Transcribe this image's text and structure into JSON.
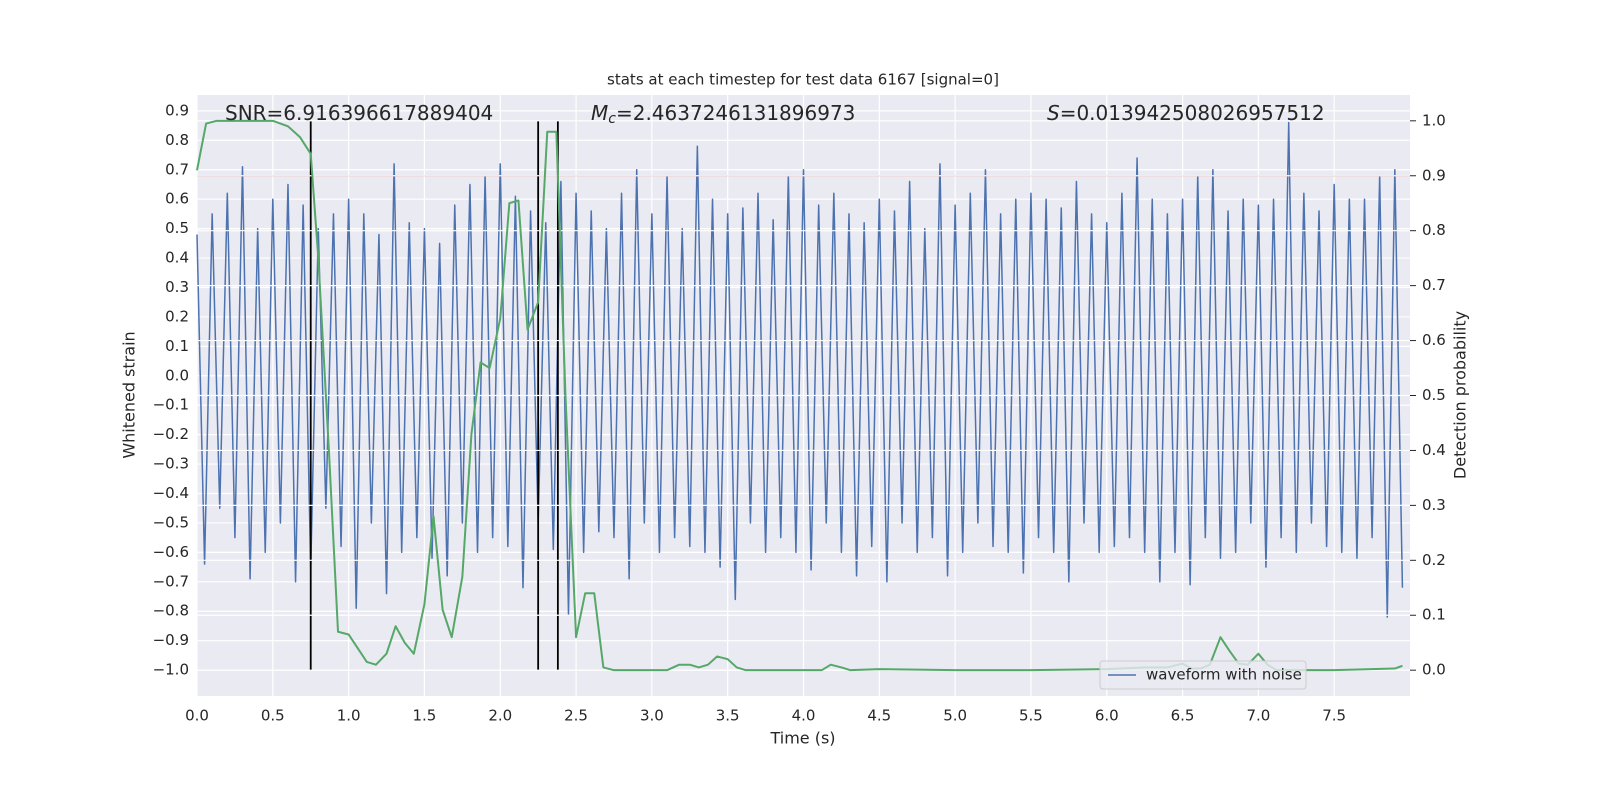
{
  "chart_data": {
    "type": "line",
    "title": "stats at each timestep for test data 6167 [signal=0]",
    "xlabel": "Time (s)",
    "ylabel": "Whitened strain",
    "y2label": "Detection probability",
    "xlim": [
      0,
      8
    ],
    "ylim": [
      -1.088,
      0.954
    ],
    "y2lim": [
      -0.047,
      1.047
    ],
    "grid": true,
    "legend": "lower right",
    "xticks": [
      {
        "value": 0,
        "label": "0.0"
      },
      0.5,
      {
        "value": 1,
        "label": "1.0"
      },
      1.5,
      {
        "value": 2,
        "label": "2.0"
      },
      2.5,
      {
        "value": 3,
        "label": "3.0"
      },
      3.5,
      {
        "value": 4,
        "label": "4.0"
      },
      4.5,
      {
        "value": 5,
        "label": "5.0"
      },
      5.5,
      {
        "value": 6,
        "label": "6.0"
      },
      6.5,
      {
        "value": 7,
        "label": "7.0"
      },
      7.5
    ],
    "yticks": [
      {
        "value": -1.0,
        "label": "−1.0"
      },
      {
        "value": -0.9,
        "label": "−0.9"
      },
      {
        "value": -0.8,
        "label": "−0.8"
      },
      {
        "value": -0.7,
        "label": "−0.7"
      },
      {
        "value": -0.6,
        "label": "−0.6"
      },
      {
        "value": -0.5,
        "label": "−0.5"
      },
      {
        "value": -0.4,
        "label": "−0.4"
      },
      {
        "value": -0.3,
        "label": "−0.3"
      },
      {
        "value": -0.2,
        "label": "−0.2"
      },
      {
        "value": -0.1,
        "label": "−0.1"
      },
      {
        "value": 0,
        "label": "0.0"
      },
      0.1,
      0.2,
      0.3,
      0.4,
      0.5,
      0.6,
      0.7,
      0.8,
      0.9
    ],
    "y2ticks": [
      {
        "value": 0,
        "label": "0.0"
      },
      0.1,
      0.2,
      0.3,
      0.4,
      0.5,
      0.6,
      0.7,
      0.8,
      0.9,
      {
        "value": 1,
        "label": "1.0"
      }
    ],
    "x": [
      0,
      0.05,
      0.1,
      0.15,
      0.2,
      0.25,
      0.3,
      0.35,
      0.4,
      0.45,
      0.5,
      0.55,
      0.6,
      0.65,
      0.7,
      0.75,
      0.8,
      0.85,
      0.9,
      0.95,
      1,
      1.05,
      1.1,
      1.15,
      1.2,
      1.25,
      1.3,
      1.35,
      1.4,
      1.45,
      1.5,
      1.55,
      1.6,
      1.65,
      1.7,
      1.75,
      1.8,
      1.85,
      1.9,
      1.95,
      2,
      2.05,
      2.1,
      2.15,
      2.2,
      2.25,
      2.3,
      2.35,
      2.4,
      2.45,
      2.5,
      2.55,
      2.6,
      2.65,
      2.7,
      2.75,
      2.8,
      2.85,
      2.9,
      2.95,
      3,
      3.05,
      3.1,
      3.15,
      3.2,
      3.25,
      3.3,
      3.35,
      3.4,
      3.45,
      3.5,
      3.55,
      3.6,
      3.65,
      3.7,
      3.75,
      3.8,
      3.85,
      3.9,
      3.95,
      4,
      4.05,
      4.1,
      4.15,
      4.2,
      4.25,
      4.3,
      4.35,
      4.4,
      4.45,
      4.5,
      4.55,
      4.6,
      4.65,
      4.7,
      4.75,
      4.8,
      4.85,
      4.9,
      4.95,
      5,
      5.05,
      5.1,
      5.15,
      5.2,
      5.25,
      5.3,
      5.35,
      5.4,
      5.45,
      5.5,
      5.55,
      5.6,
      5.65,
      5.7,
      5.75,
      5.8,
      5.85,
      5.9,
      5.95,
      6,
      6.05,
      6.1,
      6.15,
      6.2,
      6.25,
      6.3,
      6.35,
      6.4,
      6.45,
      6.5,
      6.55,
      6.6,
      6.65,
      6.7,
      6.75,
      6.8,
      6.85,
      6.9,
      6.95,
      7,
      7.05,
      7.1,
      7.15,
      7.2,
      7.25,
      7.3,
      7.35,
      7.4,
      7.45,
      7.5,
      7.55,
      7.6,
      7.65,
      7.7,
      7.75,
      7.8,
      7.85,
      7.9,
      7.95
    ],
    "series": [
      {
        "name": "waveform with noise",
        "color": "#4c72b0",
        "values": [
          0.48,
          -0.64,
          0.55,
          -0.45,
          0.62,
          -0.55,
          0.71,
          -0.69,
          0.5,
          -0.6,
          0.6,
          -0.5,
          0.65,
          -0.7,
          0.58,
          -0.66,
          0.5,
          -0.45,
          0.55,
          -0.58,
          0.6,
          -0.79,
          0.55,
          -0.5,
          0.48,
          -0.74,
          0.72,
          -0.6,
          0.52,
          -0.55,
          0.5,
          -0.62,
          0.45,
          -0.68,
          0.58,
          -0.5,
          0.65,
          -0.6,
          0.68,
          -0.55,
          0.72,
          -0.58,
          0.61,
          -0.72,
          0.56,
          -0.5,
          0.52,
          -0.59,
          0.66,
          -0.81,
          0.62,
          -0.6,
          0.56,
          -0.53,
          0.5,
          -0.55,
          0.62,
          -0.69,
          0.7,
          -0.5,
          0.55,
          -0.6,
          0.68,
          -0.55,
          0.5,
          -0.58,
          0.78,
          -0.6,
          0.6,
          -0.65,
          0.55,
          -0.76,
          0.57,
          -0.5,
          0.62,
          -0.6,
          0.53,
          -0.55,
          0.68,
          -0.6,
          0.7,
          -0.66,
          0.58,
          -0.5,
          0.62,
          -0.6,
          0.55,
          -0.68,
          0.52,
          -0.58,
          0.6,
          -0.7,
          0.56,
          -0.5,
          0.66,
          -0.6,
          0.5,
          -0.55,
          0.72,
          -0.68,
          0.58,
          -0.6,
          0.62,
          -0.5,
          0.7,
          -0.58,
          0.55,
          -0.6,
          0.6,
          -0.67,
          0.62,
          -0.55,
          0.6,
          -0.6,
          0.57,
          -0.7,
          0.66,
          -0.5,
          0.55,
          -0.6,
          0.52,
          -0.58,
          0.62,
          -0.55,
          0.74,
          -0.6,
          0.6,
          -0.7,
          0.55,
          -0.6,
          0.6,
          -0.71,
          0.68,
          -0.55,
          0.7,
          -0.62,
          0.56,
          -0.6,
          0.6,
          -0.5,
          0.58,
          -0.65,
          0.6,
          -0.55,
          0.86,
          -0.6,
          0.62,
          -0.5,
          0.56,
          -0.58,
          0.65,
          -0.6,
          0.6,
          -0.62,
          0.6,
          -0.55,
          0.68,
          -0.82,
          0.7,
          -0.72
        ]
      },
      {
        "color": "#55a868",
        "axis": "y2",
        "x": [
          0,
          0.06,
          0.13,
          0.5,
          0.6,
          0.68,
          0.75,
          0.8,
          0.87,
          0.93,
          1.0,
          1.06,
          1.12,
          1.18,
          1.25,
          1.31,
          1.37,
          1.43,
          1.5,
          1.56,
          1.62,
          1.68,
          1.75,
          1.81,
          1.87,
          1.93,
          2.0,
          2.06,
          2.12,
          2.18,
          2.25,
          2.31,
          2.37,
          2.43,
          2.5,
          2.56,
          2.62,
          2.68,
          2.75,
          3.1,
          3.18,
          3.25,
          3.31,
          3.37,
          3.43,
          3.5,
          3.56,
          3.62,
          4.0,
          4.12,
          4.18,
          4.25,
          4.31,
          4.5,
          5.0,
          5.5,
          6.0,
          6.25,
          6.4,
          6.5,
          6.56,
          6.62,
          6.68,
          6.75,
          6.81,
          6.87,
          6.93,
          7.0,
          7.06,
          7.12,
          7.5,
          7.9,
          7.95
        ],
        "values": [
          0.91,
          0.995,
          1.0,
          1.0,
          0.99,
          0.97,
          0.94,
          0.75,
          0.4,
          0.07,
          0.065,
          0.04,
          0.015,
          0.01,
          0.03,
          0.08,
          0.05,
          0.03,
          0.12,
          0.28,
          0.11,
          0.06,
          0.17,
          0.43,
          0.56,
          0.55,
          0.64,
          0.85,
          0.855,
          0.62,
          0.67,
          0.98,
          0.98,
          0.5,
          0.06,
          0.14,
          0.14,
          0.005,
          0.0,
          0.0,
          0.01,
          0.01,
          0.005,
          0.01,
          0.025,
          0.02,
          0.005,
          0.0,
          0.0,
          0.0,
          0.01,
          0.005,
          0.0,
          0.002,
          0.0,
          0.0,
          0.002,
          0.005,
          0.005,
          0.012,
          0.003,
          0.003,
          0.01,
          0.06,
          0.035,
          0.012,
          0.01,
          0.03,
          0.01,
          0.0,
          0.0,
          0.003,
          0.008
        ]
      }
    ],
    "hlines": [
      {
        "y": 0.9,
        "axis": "y2",
        "color": "#c44e52"
      }
    ],
    "vlines": {
      "x": [
        0.75,
        2.25,
        2.38
      ],
      "ymin": 0,
      "ymax": 1,
      "axis": "y2",
      "color": "#000000"
    },
    "annotations": [
      {
        "text": "SNR=6.916396617889404"
      },
      {
        "symbol": "M",
        "subscript": "c",
        "text": "=2.4637246131896973"
      },
      {
        "symbol": "S",
        "text": "=0.013942508026957512"
      }
    ]
  }
}
